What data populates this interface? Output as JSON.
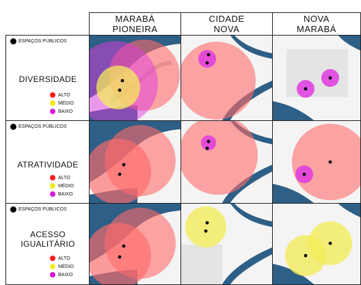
{
  "columns": [
    {
      "line1": "MARABÁ",
      "line2": "PIONEIRA"
    },
    {
      "line1": "CIDADE",
      "line2": "NOVA"
    },
    {
      "line1": "NOVA",
      "line2": "MARABÁ"
    }
  ],
  "rows": [
    {
      "legend_label": "ESPAÇOS PÚBLICOS",
      "criterion_line1": "DIVERSIDADE",
      "criterion_line2": ""
    },
    {
      "legend_label": "ESPAÇOS PÚBLICOS",
      "criterion_line1": "ATRATIVIDADE",
      "criterion_line2": ""
    },
    {
      "legend_label": "ESPAÇOS PÚBLICOS",
      "criterion_line1": "ACESSO",
      "criterion_line2": "IGUALITÁRIO"
    }
  ],
  "levels": [
    {
      "label": "ALTO",
      "color": "#ff1a1a"
    },
    {
      "label": "MÉDIO",
      "color": "#f2ea1c"
    },
    {
      "label": "BAIXO",
      "color": "#d61ad6"
    }
  ],
  "colors": {
    "river": "#2e5f86",
    "land": "#f4f4f4",
    "alto_circle": "#ff6b6b",
    "medio_circle": "#f3ec5a",
    "baixo_circle": "#e03be0",
    "point": "#000000"
  }
}
